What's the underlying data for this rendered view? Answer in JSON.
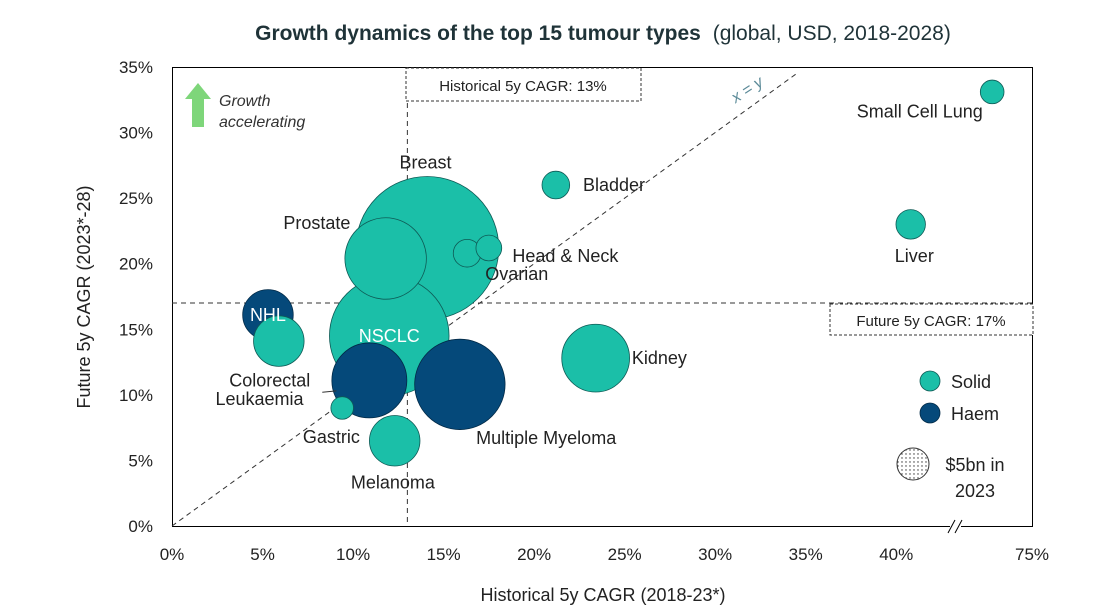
{
  "chart_data": {
    "type": "scatter",
    "title": "Growth dynamics of the top 15 tumour types",
    "subtitle": "(global, USD, 2018-2028)",
    "xlabel": "Historical 5y CAGR (2018-23*)",
    "ylabel": "Future 5y CAGR (2023*-28)",
    "x_ticks": [
      "0%",
      "5%",
      "10%",
      "15%",
      "20%",
      "25%",
      "30%",
      "35%",
      "40%",
      "75%"
    ],
    "y_ticks": [
      "0%",
      "5%",
      "10%",
      "15%",
      "20%",
      "25%",
      "30%",
      "35%"
    ],
    "xlim": [
      0,
      47.5
    ],
    "ylim": [
      0,
      35
    ],
    "x_axis_break": true,
    "x_axis_break_after_label": "40%",
    "reference_lines": {
      "historical_label": "Historical 5y CAGR: 13%",
      "historical_value": 13,
      "future_label": "Future 5y CAGR: 17%",
      "future_value": 17,
      "diagonal_label": "x = y"
    },
    "growth_annotation": "Growth accelerating",
    "legend": {
      "items": [
        {
          "label": "Solid",
          "color": "#1bbfa8"
        },
        {
          "label": "Haem",
          "color": "#05497a"
        }
      ],
      "size_label": "$5bn in 2023",
      "placement": "right"
    },
    "colors": {
      "solid": "#1bbfa8",
      "haem": "#05497a",
      "arrow": "#7ed67a",
      "title": "#1f3338",
      "diagonal_label": "#5b8a98"
    },
    "points": [
      {
        "name": "Breast",
        "x": 14.1,
        "y": 21.2,
        "size": 40,
        "group": "solid"
      },
      {
        "name": "NSCLC",
        "x": 12.0,
        "y": 14.5,
        "size": 28,
        "group": "solid"
      },
      {
        "name": "Prostate",
        "x": 11.8,
        "y": 20.4,
        "size": 13,
        "group": "solid"
      },
      {
        "name": "Kidney",
        "x": 23.4,
        "y": 12.8,
        "size": 9,
        "group": "solid"
      },
      {
        "name": "Multiple Myeloma",
        "x": 15.9,
        "y": 10.8,
        "size": 16,
        "group": "haem"
      },
      {
        "name": "Leukaemia",
        "x": 10.9,
        "y": 11.1,
        "size": 11,
        "group": "haem"
      },
      {
        "name": "NHL",
        "x": 5.3,
        "y": 16.1,
        "size": 5,
        "group": "haem"
      },
      {
        "name": "Colorectal",
        "x": 5.9,
        "y": 14.1,
        "size": 5,
        "group": "solid"
      },
      {
        "name": "Melanoma",
        "x": 12.3,
        "y": 6.5,
        "size": 5,
        "group": "solid"
      },
      {
        "name": "Bladder",
        "x": 21.2,
        "y": 26.0,
        "size": 1.5,
        "group": "solid"
      },
      {
        "name": "Head & Neck",
        "x": 17.5,
        "y": 21.2,
        "size": 1.3,
        "group": "solid"
      },
      {
        "name": "Ovarian",
        "x": 16.3,
        "y": 20.8,
        "size": 1.5,
        "group": "solid"
      },
      {
        "name": "Gastric",
        "x": 9.4,
        "y": 9.0,
        "size": 1.0,
        "group": "solid"
      },
      {
        "name": "Liver",
        "x": 40.8,
        "y": 23.0,
        "size": 1.7,
        "group": "solid"
      },
      {
        "name": "Small Cell Lung",
        "x": 45.3,
        "y": 33.1,
        "size": 1.1,
        "group": "solid"
      }
    ]
  }
}
